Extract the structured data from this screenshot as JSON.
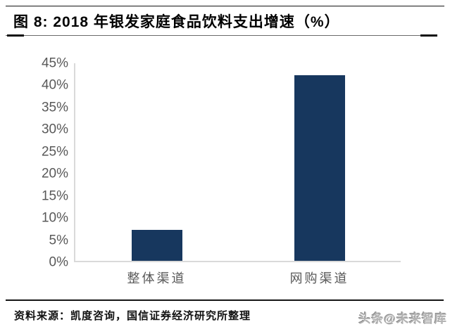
{
  "header": {
    "title": "图 8: 2018 年银发家庭食品饮料支出增速（%）"
  },
  "footer": {
    "source": "资料来源：凯度咨询，国信证券经济研究所整理",
    "watermark": "头条@未来智库"
  },
  "colors": {
    "bar": "#17375E",
    "axis": "#D9D9D9",
    "tick_text": "#595959"
  },
  "chart_data": {
    "type": "bar",
    "title": "2018 年银发家庭食品饮料支出增速（%）",
    "categories": [
      "整体渠道",
      "网购渠道"
    ],
    "values": [
      7,
      42
    ],
    "unit": "%",
    "ylim": [
      0,
      45
    ],
    "ytick_step": 5,
    "ytick_labels": [
      "0%",
      "5%",
      "10%",
      "15%",
      "20%",
      "25%",
      "30%",
      "35%",
      "40%",
      "45%"
    ],
    "grid": false,
    "legend": false,
    "bar_color": "#17375E"
  }
}
